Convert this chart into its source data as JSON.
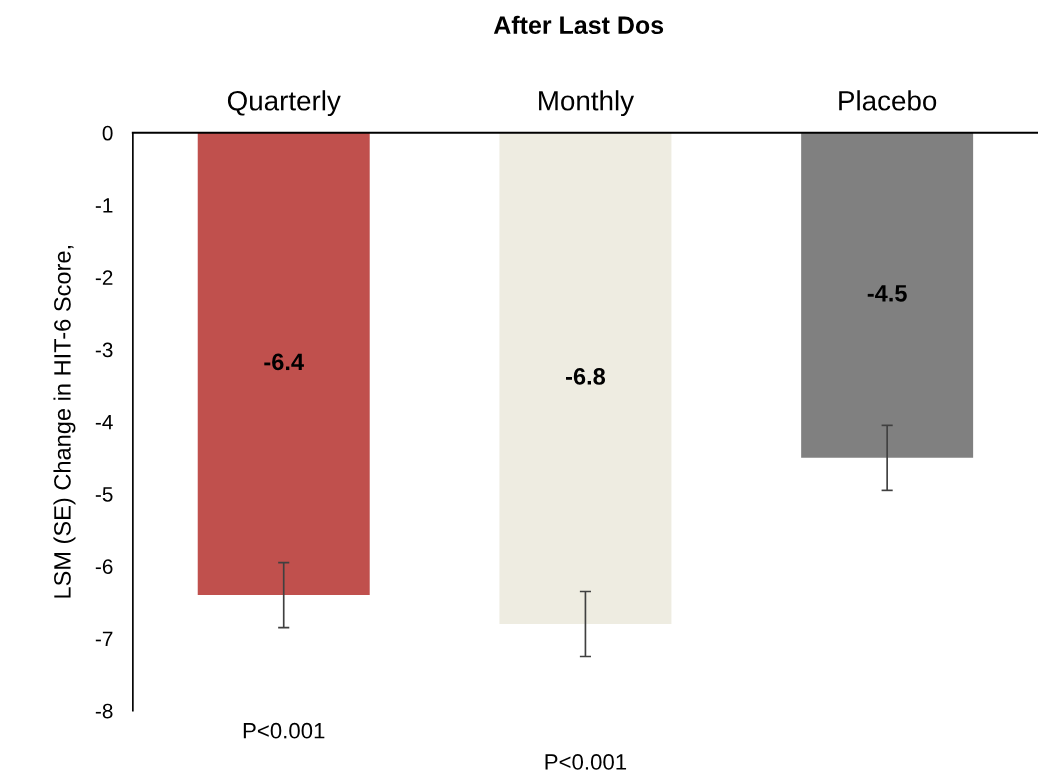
{
  "chart_data": {
    "type": "bar",
    "title": "After Last Dos",
    "ylabel": "LSM (SE) Change in HIT-6 Score,",
    "categories": [
      "Quarterly",
      "Monthly",
      "Placebo"
    ],
    "values": [
      -6.4,
      -6.8,
      -4.5
    ],
    "colors": [
      "#c0504d",
      "#eeece1",
      "#808080"
    ],
    "errors": [
      0.45,
      0.45,
      0.45
    ],
    "data_labels": true,
    "ylim": [
      -8,
      0
    ],
    "yticks": [
      -8,
      -7,
      -6,
      -5,
      -4,
      -3,
      -2,
      -1,
      0
    ],
    "grid": false,
    "legend": false,
    "annotations": [
      "P<0.001",
      "P<0.001"
    ]
  }
}
